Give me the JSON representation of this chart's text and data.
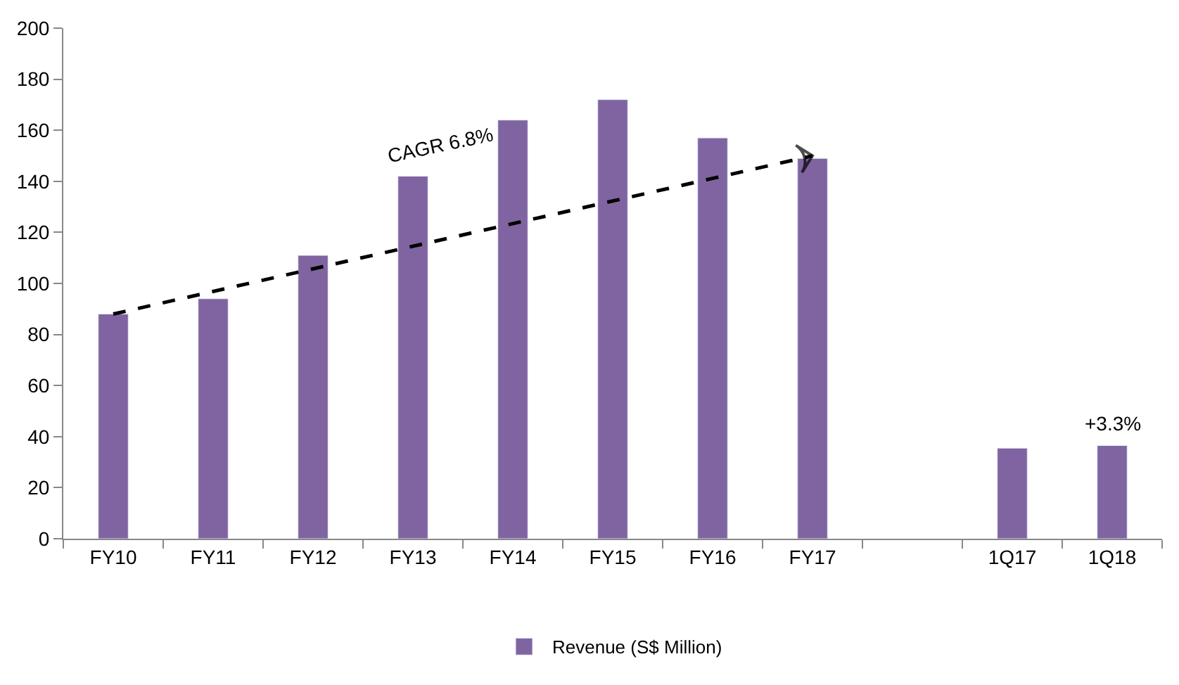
{
  "chart_data": {
    "type": "bar",
    "categories": [
      "FY10",
      "FY11",
      "FY12",
      "FY13",
      "FY14",
      "FY15",
      "FY16",
      "FY17",
      null,
      "1Q17",
      "1Q18"
    ],
    "series": [
      {
        "name": "Revenue (S$ Million)",
        "color": "#8064a2",
        "values": [
          88,
          94,
          111,
          142,
          164,
          172,
          157,
          149,
          null,
          35.5,
          36.5
        ]
      },
      {
        "type": "line",
        "color": "#000000",
        "line_style": "dashed",
        "x": [
          "FY10",
          "FY17"
        ],
        "values": [
          88,
          150
        ]
      }
    ],
    "ylim": [
      0,
      200
    ],
    "yticks": [
      0,
      20,
      40,
      60,
      80,
      100,
      120,
      140,
      160,
      180,
      200
    ],
    "annotations": [
      "CAGR 6.8%",
      {
        "text": "+3.3%",
        "x": "1Q18",
        "y": 36.5
      }
    ],
    "legend": "bottom"
  }
}
